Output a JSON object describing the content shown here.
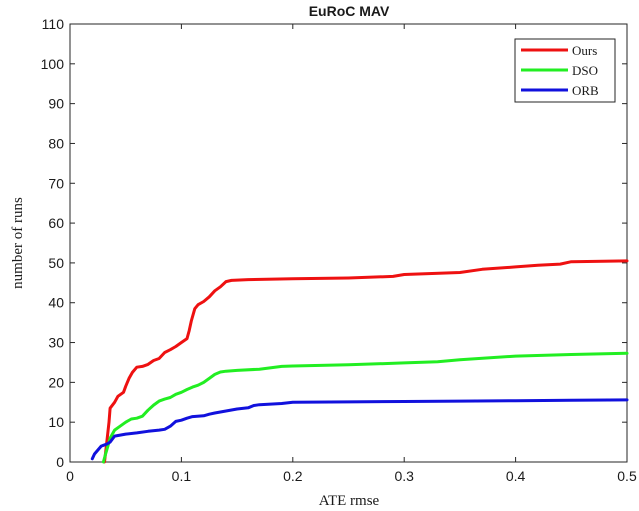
{
  "chart_data": {
    "type": "line",
    "title": "EuRoC MAV",
    "xlabel": "ATE rmse",
    "ylabel": "number of runs",
    "xlim": [
      0,
      0.5
    ],
    "ylim": [
      0,
      110
    ],
    "xticks": [
      0,
      0.1,
      0.2,
      0.3,
      0.4,
      0.5
    ],
    "xtick_labels": [
      "0",
      "0.1",
      "0.2",
      "0.3",
      "0.4",
      "0.5"
    ],
    "yticks": [
      0,
      10,
      20,
      30,
      40,
      50,
      60,
      70,
      80,
      90,
      100,
      110
    ],
    "ytick_labels": [
      "0",
      "10",
      "20",
      "30",
      "40",
      "50",
      "60",
      "70",
      "80",
      "90",
      "100",
      "110"
    ],
    "grid": false,
    "legend_position": "top-right",
    "series": [
      {
        "name": "Ours",
        "color": "#ee1111",
        "points": [
          [
            0.031,
            0
          ],
          [
            0.033,
            5
          ],
          [
            0.035,
            10
          ],
          [
            0.036,
            13.5
          ],
          [
            0.04,
            15
          ],
          [
            0.043,
            16.5
          ],
          [
            0.048,
            17.5
          ],
          [
            0.05,
            19
          ],
          [
            0.053,
            21
          ],
          [
            0.056,
            22.5
          ],
          [
            0.06,
            23.8
          ],
          [
            0.065,
            24
          ],
          [
            0.07,
            24.5
          ],
          [
            0.075,
            25.5
          ],
          [
            0.08,
            26
          ],
          [
            0.085,
            27.5
          ],
          [
            0.09,
            28.2
          ],
          [
            0.095,
            29
          ],
          [
            0.1,
            30
          ],
          [
            0.105,
            31
          ],
          [
            0.107,
            33
          ],
          [
            0.109,
            35.5
          ],
          [
            0.112,
            38.5
          ],
          [
            0.115,
            39.5
          ],
          [
            0.12,
            40.3
          ],
          [
            0.125,
            41.5
          ],
          [
            0.13,
            43
          ],
          [
            0.135,
            44
          ],
          [
            0.14,
            45.3
          ],
          [
            0.145,
            45.6
          ],
          [
            0.16,
            45.8
          ],
          [
            0.2,
            46
          ],
          [
            0.25,
            46.2
          ],
          [
            0.29,
            46.6
          ],
          [
            0.3,
            47.1
          ],
          [
            0.35,
            47.6
          ],
          [
            0.37,
            48.4
          ],
          [
            0.4,
            49
          ],
          [
            0.42,
            49.4
          ],
          [
            0.44,
            49.7
          ],
          [
            0.45,
            50.3
          ],
          [
            0.5,
            50.5
          ]
        ]
      },
      {
        "name": "DSO",
        "color": "#22ee22",
        "points": [
          [
            0.03,
            0
          ],
          [
            0.032,
            2
          ],
          [
            0.034,
            4
          ],
          [
            0.036,
            6
          ],
          [
            0.04,
            8
          ],
          [
            0.045,
            9
          ],
          [
            0.05,
            10
          ],
          [
            0.055,
            10.8
          ],
          [
            0.06,
            11
          ],
          [
            0.065,
            11.5
          ],
          [
            0.07,
            13
          ],
          [
            0.075,
            14.3
          ],
          [
            0.08,
            15.3
          ],
          [
            0.085,
            15.8
          ],
          [
            0.09,
            16.2
          ],
          [
            0.095,
            17
          ],
          [
            0.1,
            17.5
          ],
          [
            0.105,
            18.2
          ],
          [
            0.11,
            18.8
          ],
          [
            0.115,
            19.3
          ],
          [
            0.12,
            20
          ],
          [
            0.125,
            21
          ],
          [
            0.13,
            22
          ],
          [
            0.135,
            22.6
          ],
          [
            0.14,
            22.8
          ],
          [
            0.15,
            23
          ],
          [
            0.17,
            23.3
          ],
          [
            0.19,
            24
          ],
          [
            0.2,
            24.1
          ],
          [
            0.25,
            24.4
          ],
          [
            0.3,
            24.9
          ],
          [
            0.33,
            25.2
          ],
          [
            0.35,
            25.7
          ],
          [
            0.4,
            26.6
          ],
          [
            0.45,
            27
          ],
          [
            0.5,
            27.3
          ]
        ]
      },
      {
        "name": "ORB",
        "color": "#1111dd",
        "points": [
          [
            0.02,
            0.8
          ],
          [
            0.022,
            2
          ],
          [
            0.025,
            3
          ],
          [
            0.028,
            4
          ],
          [
            0.03,
            4.2
          ],
          [
            0.033,
            4.5
          ],
          [
            0.036,
            5
          ],
          [
            0.04,
            6.5
          ],
          [
            0.05,
            7
          ],
          [
            0.06,
            7.3
          ],
          [
            0.07,
            7.7
          ],
          [
            0.08,
            8
          ],
          [
            0.085,
            8.2
          ],
          [
            0.09,
            9
          ],
          [
            0.095,
            10.2
          ],
          [
            0.1,
            10.5
          ],
          [
            0.105,
            11
          ],
          [
            0.11,
            11.4
          ],
          [
            0.12,
            11.6
          ],
          [
            0.125,
            12
          ],
          [
            0.13,
            12.3
          ],
          [
            0.14,
            12.8
          ],
          [
            0.15,
            13.3
          ],
          [
            0.16,
            13.6
          ],
          [
            0.165,
            14.2
          ],
          [
            0.17,
            14.4
          ],
          [
            0.19,
            14.7
          ],
          [
            0.2,
            15
          ],
          [
            0.25,
            15.1
          ],
          [
            0.3,
            15.2
          ],
          [
            0.35,
            15.3
          ],
          [
            0.4,
            15.4
          ],
          [
            0.45,
            15.5
          ],
          [
            0.5,
            15.6
          ]
        ]
      }
    ]
  }
}
